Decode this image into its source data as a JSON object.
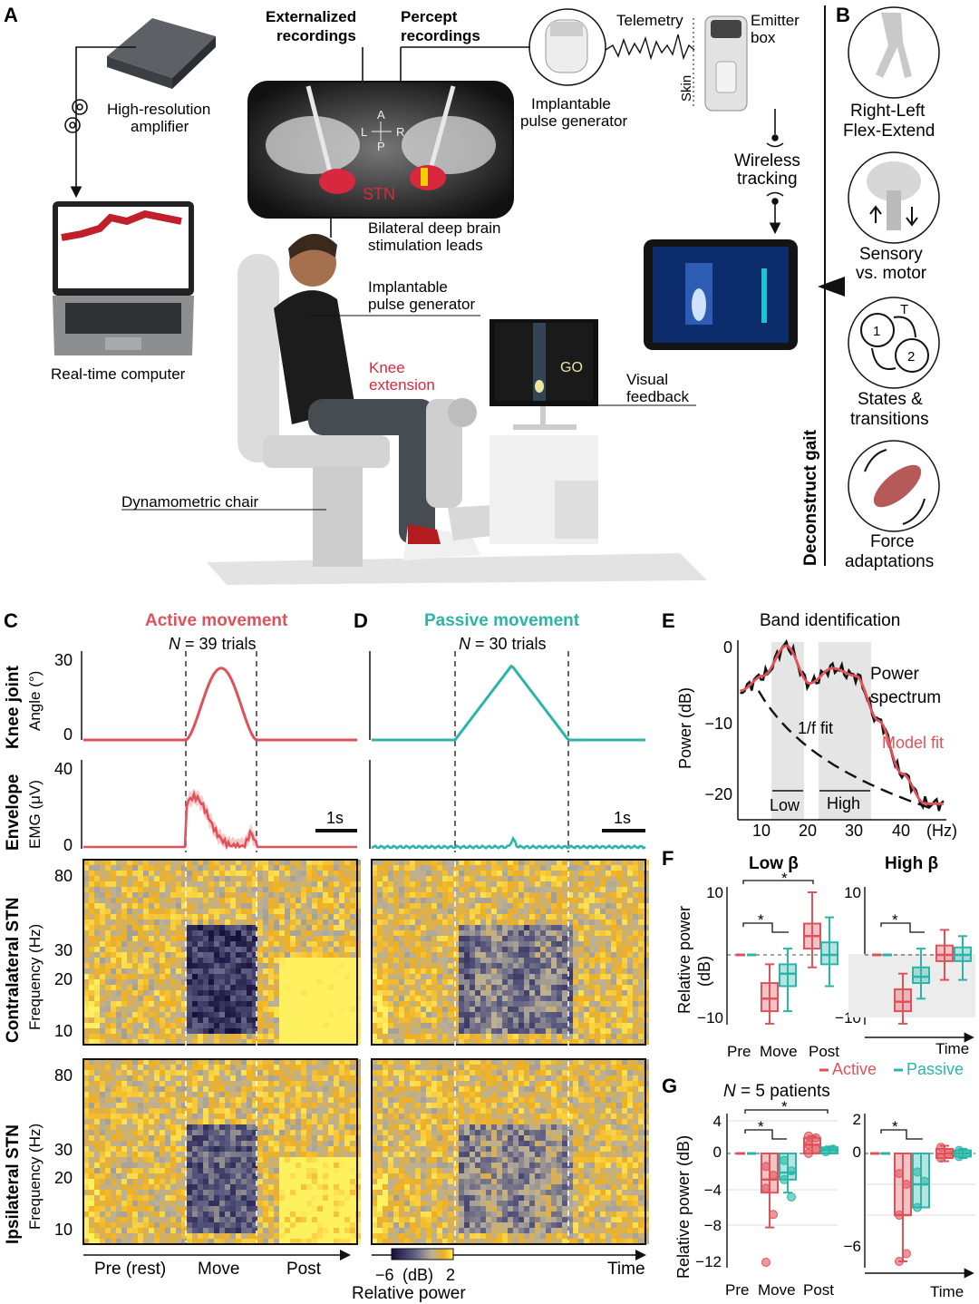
{
  "colors": {
    "active": "#e0525a",
    "passive": "#2bb5a8",
    "dark": "#1a1a1a",
    "grid": "#dddddd"
  },
  "panelA": {
    "letter": "A",
    "externalized": [
      "Externalized",
      "recordings"
    ],
    "percept": [
      "Percept",
      "recordings"
    ],
    "telemetry": "Telemetry",
    "emitter": [
      "Emitter",
      "box"
    ],
    "skin": "Skin",
    "amplifier": [
      "High-resolution",
      "amplifier"
    ],
    "ipg_top": [
      "Implantable",
      "pulse generator"
    ],
    "stn": "STN",
    "compass": {
      "a": "A",
      "p": "P",
      "l": "L",
      "r": "R"
    },
    "wireless": [
      "Wireless",
      "tracking"
    ],
    "leads": [
      "Bilateral deep brain",
      "stimulation leads"
    ],
    "ipg_body": [
      "Implantable",
      "pulse generator"
    ],
    "computer": "Real-time computer",
    "knee": [
      "Knee",
      "extension"
    ],
    "go": "GO",
    "visual": [
      "Visual",
      "feedback"
    ],
    "chair": "Dynamometric chair"
  },
  "panelB": {
    "letter": "B",
    "vertical": "Deconstruct gait",
    "items": [
      [
        "Right-Left",
        "Flex-Extend"
      ],
      [
        "Sensory",
        "vs. motor"
      ],
      [
        "States &",
        "transitions"
      ],
      [
        "Force",
        "adaptations"
      ]
    ],
    "state1": "1",
    "state2": "2",
    "stateT": "T"
  },
  "panelC": {
    "letter": "C",
    "title": "Active movement",
    "n": "N",
    "trials": " = 39 trials"
  },
  "panelD": {
    "letter": "D",
    "title": "Passive movement",
    "n": "N",
    "trials": " = 30 trials"
  },
  "rowlabels": {
    "knee_bold": "Knee joint",
    "knee_sub": "Angle (°)",
    "env_bold": "Envelope",
    "env_sub": "EMG (μV)",
    "contra_bold": "Contralateral STN",
    "contra_sub": "Frequency (Hz)",
    "ipsi_bold": "Ipsilateral STN",
    "ipsi_sub": "Frequency (Hz)"
  },
  "ticks": {
    "angle": [
      "30",
      "0"
    ],
    "emg": [
      "40",
      "0"
    ],
    "freq": [
      "80",
      "30",
      "20",
      "10"
    ]
  },
  "scalebar": "1s",
  "xaxis": {
    "pre": "Pre (rest)",
    "move": "Move",
    "post": "Post",
    "time": "Time"
  },
  "colorbar": {
    "min": "−6",
    "unit": "(dB)",
    "max": "2",
    "label": "Relative power"
  },
  "panelE": {
    "letter": "E",
    "title": "Band identification",
    "ylabel": "Power (dB)",
    "yticks": [
      "0",
      "−10",
      "−20"
    ],
    "xticks": [
      "10",
      "20",
      "30",
      "40",
      "(Hz)"
    ],
    "power": [
      "Power",
      "spectrum"
    ],
    "fit": "1/f fit",
    "model": "Model fit",
    "low": "Low",
    "high": "High"
  },
  "panelF": {
    "letter": "F",
    "low": "Low β",
    "high": "High β",
    "ylabel": [
      "Relative power",
      "(dB)"
    ],
    "yticks": [
      "10",
      "−10"
    ],
    "yticks2": [
      "10",
      "−10"
    ],
    "xcats": [
      "Pre",
      "Move",
      "Post"
    ],
    "time": "Time",
    "star": "*",
    "legend_active": "Active",
    "legend_passive": "Passive"
  },
  "panelG": {
    "letter": "G",
    "n": "N",
    "patients": " = 5 patients",
    "ylabel": "Relative power (dB)",
    "yticks": [
      "4",
      "0",
      "−4",
      "−8",
      "−12"
    ],
    "yticks2": [
      "2",
      "0",
      "−6"
    ],
    "xcats": [
      "Pre",
      "Move",
      "Post"
    ],
    "time": "Time",
    "star": "*"
  },
  "chart_data": [
    {
      "type": "line",
      "panel": "C knee",
      "unit": "°",
      "ylim": [
        0,
        30
      ],
      "x": [
        "Pre (rest)",
        "Move",
        "Post"
      ],
      "peak": 27
    },
    {
      "type": "line",
      "panel": "D knee",
      "unit": "°",
      "ylim": [
        0,
        30
      ],
      "peak": 28
    },
    {
      "type": "line",
      "panel": "C EMG",
      "unit": "μV",
      "ylim": [
        0,
        40
      ],
      "peak": 25
    },
    {
      "type": "line",
      "panel": "E spectrum",
      "xlabel": "(Hz)",
      "ylabel": "Power (dB)",
      "x": [
        5,
        10,
        15,
        20,
        25,
        30,
        35,
        40,
        45
      ],
      "y": [
        -6,
        -4,
        0,
        -5,
        -3,
        -4,
        -10,
        -17,
        -21
      ]
    },
    {
      "type": "box",
      "panel": "F Low β",
      "categories": [
        "Pre",
        "Move",
        "Post"
      ],
      "series": [
        {
          "name": "Active",
          "median": [
            0,
            -7,
            3
          ]
        },
        {
          "name": "Passive",
          "median": [
            0,
            -3,
            0
          ]
        }
      ]
    },
    {
      "type": "box",
      "panel": "F High β",
      "categories": [
        "Pre",
        "Move",
        "Post"
      ],
      "series": [
        {
          "name": "Active",
          "median": [
            0,
            -7,
            0
          ]
        },
        {
          "name": "Passive",
          "median": [
            0,
            -3,
            0
          ]
        }
      ]
    },
    {
      "type": "scatter",
      "panel": "G low",
      "categories": [
        "Pre",
        "Move",
        "Post"
      ],
      "series": [
        {
          "name": "Active",
          "median": [
            0,
            -3,
            1
          ]
        },
        {
          "name": "Passive",
          "median": [
            0,
            -2,
            0.3
          ]
        }
      ]
    },
    {
      "type": "scatter",
      "panel": "G high",
      "categories": [
        "Pre",
        "Move",
        "Post"
      ],
      "series": [
        {
          "name": "Active",
          "median": [
            0,
            -4,
            0
          ]
        },
        {
          "name": "Passive",
          "median": [
            0,
            -2,
            0
          ]
        }
      ]
    }
  ]
}
